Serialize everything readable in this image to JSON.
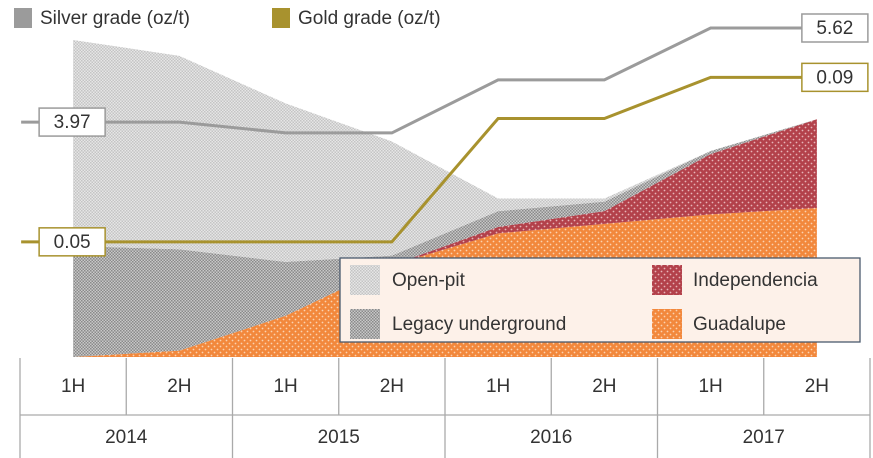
{
  "chart_data": {
    "type": "area",
    "categories": [
      "1H",
      "2H",
      "1H",
      "2H",
      "1H",
      "2H",
      "1H",
      "2H"
    ],
    "groups": [
      "2014",
      "2015",
      "2016",
      "2017"
    ],
    "ylim": [
      0,
      100
    ],
    "series": [
      {
        "name": "Guadalupe",
        "type": "area",
        "color": "#f2883c",
        "values": [
          0,
          2,
          13,
          29,
          39,
          42,
          45,
          47
        ]
      },
      {
        "name": "Independencia",
        "type": "area",
        "color": "#b3414b",
        "values": [
          0,
          0,
          0,
          0,
          2,
          4,
          19,
          28
        ]
      },
      {
        "name": "Legacy underground",
        "type": "area",
        "color": "#9a9a9a",
        "values": [
          35,
          32,
          17,
          3,
          5,
          3,
          1,
          0
        ]
      },
      {
        "name": "Open-pit",
        "type": "area",
        "color": "#d4d4d4",
        "values": [
          65,
          61,
          50,
          36,
          4,
          1,
          0,
          0
        ]
      },
      {
        "name": "Silver grade (oz/t)",
        "type": "line",
        "color": "#9b9b9b",
        "ylim": [
          -0.15,
          5.62
        ],
        "values": [
          3.97,
          3.97,
          3.78,
          3.78,
          4.71,
          4.71,
          5.62,
          5.62
        ]
      },
      {
        "name": "Gold grade (oz/t)",
        "type": "line",
        "color": "#a8922e",
        "ylim": [
          0.022,
          0.102
        ],
        "values": [
          0.05,
          0.05,
          0.05,
          0.05,
          0.08,
          0.08,
          0.09,
          0.09
        ]
      }
    ]
  }
}
